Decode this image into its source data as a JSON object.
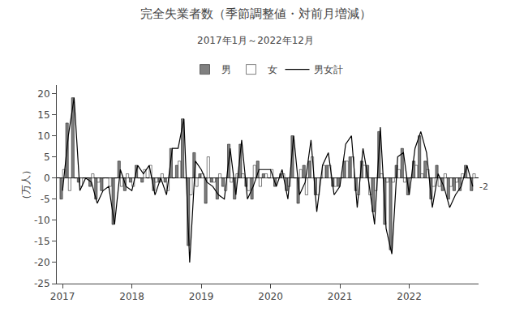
{
  "chart_data": {
    "type": "bar",
    "title": "完全失業者数（季節調整値・対前月増減）",
    "subtitle": "2017年1月～2022年12月",
    "ylabel": "（万人）",
    "categories": [
      "2017",
      null,
      null,
      null,
      null,
      null,
      null,
      null,
      null,
      null,
      null,
      null,
      "2018",
      null,
      null,
      null,
      null,
      null,
      null,
      null,
      null,
      null,
      null,
      null,
      "2019",
      null,
      null,
      null,
      null,
      null,
      null,
      null,
      null,
      null,
      null,
      null,
      "2020",
      null,
      null,
      null,
      null,
      null,
      null,
      null,
      null,
      null,
      null,
      null,
      "2021",
      null,
      null,
      null,
      null,
      null,
      null,
      null,
      null,
      null,
      null,
      null,
      "2022",
      null,
      null,
      null,
      null,
      null,
      null,
      null,
      null,
      null,
      null,
      null
    ],
    "series": [
      {
        "name": "男",
        "type": "bar",
        "color": "#808080",
        "values": [
          -5,
          13,
          19,
          -1,
          0,
          -2,
          -5,
          -3,
          0,
          -11,
          4,
          -3,
          -1,
          3,
          -1,
          0,
          -3,
          -1,
          -1,
          7,
          3,
          14,
          -16,
          6,
          1,
          -6,
          -1,
          -5,
          -2,
          8,
          -5,
          8,
          -2,
          -5,
          4,
          1,
          0,
          -2,
          1,
          -3,
          10,
          -6,
          3,
          4,
          -4,
          0,
          3,
          -2,
          -2,
          4,
          5,
          -3,
          4,
          3,
          -8,
          11,
          -11,
          -17,
          3,
          7,
          -4,
          4,
          10,
          4,
          -5,
          3,
          -3,
          -5,
          -3,
          -3,
          3,
          -3
        ]
      },
      {
        "name": "女",
        "type": "bar",
        "color": "#ffffff",
        "values": [
          2,
          -3,
          0,
          -2,
          0,
          1,
          -1,
          0,
          -2,
          0,
          -2,
          1,
          -2,
          0,
          2,
          3,
          -1,
          1,
          -3,
          0,
          4,
          0,
          -4,
          -2,
          1,
          5,
          -1,
          1,
          -3,
          -1,
          1,
          1,
          -3,
          3,
          -2,
          1,
          2,
          0,
          1,
          -2,
          0,
          2,
          -4,
          5,
          -4,
          3,
          3,
          -2,
          0,
          4,
          5,
          -4,
          3,
          -4,
          -3,
          1,
          -1,
          -1,
          2,
          -1,
          0,
          3,
          1,
          2,
          -2,
          -2,
          1,
          -2,
          -1,
          1,
          0,
          1
        ]
      },
      {
        "name": "男女計",
        "type": "line",
        "color": "#000000",
        "values": [
          -3,
          10,
          19,
          -3,
          0,
          -1,
          -6,
          -3,
          -2,
          -11,
          2,
          -2,
          -3,
          3,
          1,
          3,
          -4,
          0,
          -4,
          7,
          7,
          14,
          -20,
          4,
          2,
          -1,
          -2,
          -4,
          -5,
          7,
          -4,
          9,
          -5,
          -2,
          2,
          2,
          2,
          -2,
          2,
          -5,
          10,
          -4,
          -1,
          9,
          -8,
          3,
          6,
          -4,
          -2,
          8,
          10,
          -7,
          7,
          -1,
          -11,
          12,
          -12,
          -18,
          5,
          6,
          -4,
          7,
          11,
          6,
          -7,
          1,
          -2,
          -7,
          -4,
          -2,
          3,
          -2
        ]
      }
    ],
    "annotations": [
      "-2"
    ],
    "ylim": [
      -25,
      22
    ],
    "yticks": [
      -25,
      -20,
      -15,
      -10,
      -5,
      0,
      5,
      10,
      15,
      20
    ],
    "grid": false,
    "legend": "top"
  }
}
